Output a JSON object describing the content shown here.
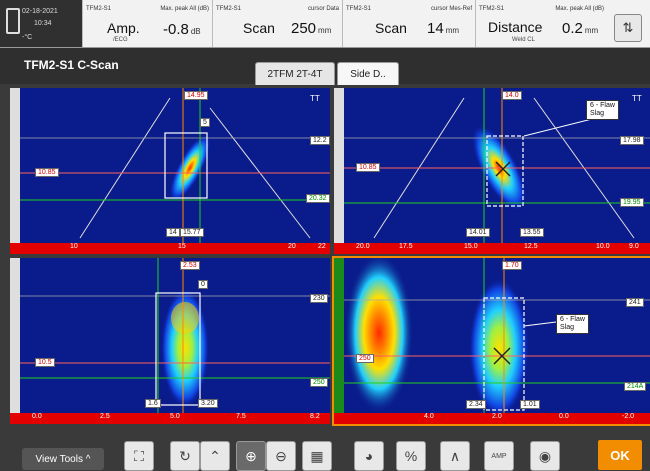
{
  "status": {
    "date": "02-18-2021",
    "time": "10:34",
    "temp": "-°C"
  },
  "readings": [
    {
      "source": "TFM2-S1",
      "label": "Max. peak All (dB)",
      "name": "Amp.",
      "sub": "/ECG",
      "value": "-0.8",
      "unit": "dB"
    },
    {
      "source": "TFM2-S1",
      "label": "cursor Data",
      "name": "Scan",
      "sub": "",
      "value": "250",
      "unit": "mm"
    },
    {
      "source": "TFM2-S1",
      "label": "cursor Mes-Ref",
      "name": "Scan",
      "sub": "",
      "value": "14",
      "unit": "mm"
    },
    {
      "source": "TFM2-S1",
      "label": "Max. peak All (dB)",
      "name": "Distance",
      "sub": "Weld CL",
      "value": "0.2",
      "unit": "mm"
    }
  ],
  "page": {
    "title": "TFM2-S1 C-Scan"
  },
  "tabs": [
    {
      "label": "2TFM 2T-4T"
    },
    {
      "label": "Side D.."
    }
  ],
  "views": {
    "tl": {
      "bottom_ticks": [
        "10",
        "15",
        "20",
        "22"
      ],
      "labels": {
        "top": "14.95",
        "left": "10.85",
        "right_top": "12.2",
        "right_bottom": "20.32",
        "bottom_a": "14",
        "bottom_b": "15.77",
        "corner": "TT",
        "cursor": "5"
      }
    },
    "tr": {
      "bottom_ticks": [
        "20.0",
        "17.5",
        "15.0",
        "12.5",
        "10.0",
        "9.0"
      ],
      "labels": {
        "top": "14.0",
        "left": "10.85",
        "right_top": "17.98",
        "right_bottom": "19.95",
        "bottom_a": "14.01",
        "bottom_b": "13.55",
        "corner": "TT"
      },
      "flaw": {
        "title": "6 - Flaw",
        "type": "Slag"
      }
    },
    "bl": {
      "bottom_ticks": [
        "0.0",
        "2.5",
        "5.0",
        "7.5",
        "8.2"
      ],
      "labels": {
        "top": "2.53",
        "left": "10.5",
        "right_top": "230",
        "right_bottom": "250",
        "bottom_a": "1.6",
        "bottom_b": "3.20",
        "cursor": "0"
      }
    },
    "br": {
      "bottom_ticks": [
        "4.0",
        "2.0",
        "0.0",
        "-2.0"
      ],
      "labels": {
        "top": "1.70",
        "left": "250",
        "right_top": "241",
        "right_bottom": "214A",
        "bottom_a": "2.34",
        "bottom_b": "1.01"
      },
      "flaw": {
        "title": "6 - Flaw",
        "type": "Slag"
      }
    }
  },
  "toolbar": {
    "view_tools": "View Tools ^",
    "ok": "OK",
    "percent": "%",
    "amp": "AMP"
  }
}
